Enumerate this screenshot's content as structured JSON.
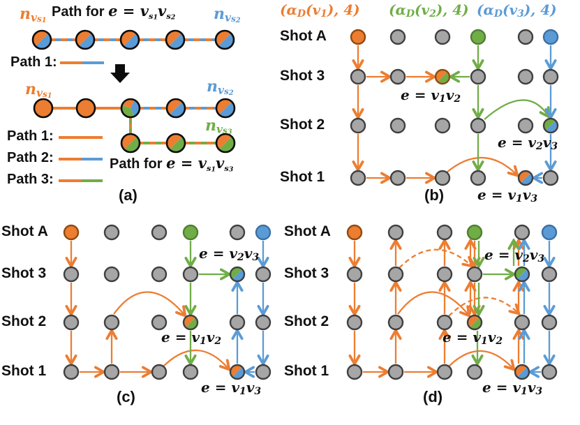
{
  "colors": {
    "orange": "#ED7D31",
    "green": "#70AD47",
    "blue": "#5B9BD5",
    "gray_node": "#A6A6A6",
    "node_stroke": "#3F3F3F",
    "orange_dark": "#8E4A10",
    "green_dark": "#507E32",
    "blue_dark": "#3B70A3",
    "black": "#111111"
  },
  "shot_rows": [
    "Shot A",
    "Shot 3",
    "Shot 2",
    "Shot 1"
  ],
  "edge_labels": {
    "v1v2": {
      "pre": "e = v",
      "i1": "1",
      "mid": "v",
      "i2": "2"
    },
    "v2v3": {
      "pre": "e = v",
      "i1": "2",
      "mid": "v",
      "i2": "3"
    },
    "v1v3": {
      "pre": "e = v",
      "i1": "1",
      "mid": "v",
      "i2": "3"
    }
  },
  "panel_a": {
    "caption": "(a)",
    "title_top": {
      "prefix": "Path for ",
      "eq": "e = ",
      "v1": "v",
      "s1": "s",
      "i1": "1",
      "v2": "v",
      "s2": "s",
      "i2": "2"
    },
    "title_bottom": {
      "prefix": "Path for ",
      "eq": "e = ",
      "v1": "v",
      "s1": "s",
      "i1": "1",
      "v2": "v",
      "s2": "s",
      "i2": "3"
    },
    "n_vs1": {
      "base": "n",
      "sub": "v",
      "ss": "s",
      "idx": "1"
    },
    "n_vs2": {
      "base": "n",
      "sub": "v",
      "ss": "s",
      "idx": "2"
    },
    "n_vs3": {
      "base": "n",
      "sub": "v",
      "ss": "s",
      "idx": "3"
    },
    "legend_top": {
      "label": "Path 1:"
    },
    "legend": [
      {
        "label": "Path 1:"
      },
      {
        "label": "Path 2:"
      },
      {
        "label": "Path 3:"
      }
    ]
  },
  "panel_b": {
    "caption": "(b)",
    "headers": [
      {
        "pre": "(α",
        "sub": "D",
        "mid": "(v",
        "idx": "1",
        "post": "), 4)"
      },
      {
        "pre": "(α",
        "sub": "D",
        "mid": "(v",
        "idx": "2",
        "post": "), 4)"
      },
      {
        "pre": "(α",
        "sub": "D",
        "mid": "(v",
        "idx": "3",
        "post": "), 4)"
      }
    ]
  },
  "panel_c": {
    "caption": "(c)"
  },
  "panel_d": {
    "caption": "(d)"
  }
}
